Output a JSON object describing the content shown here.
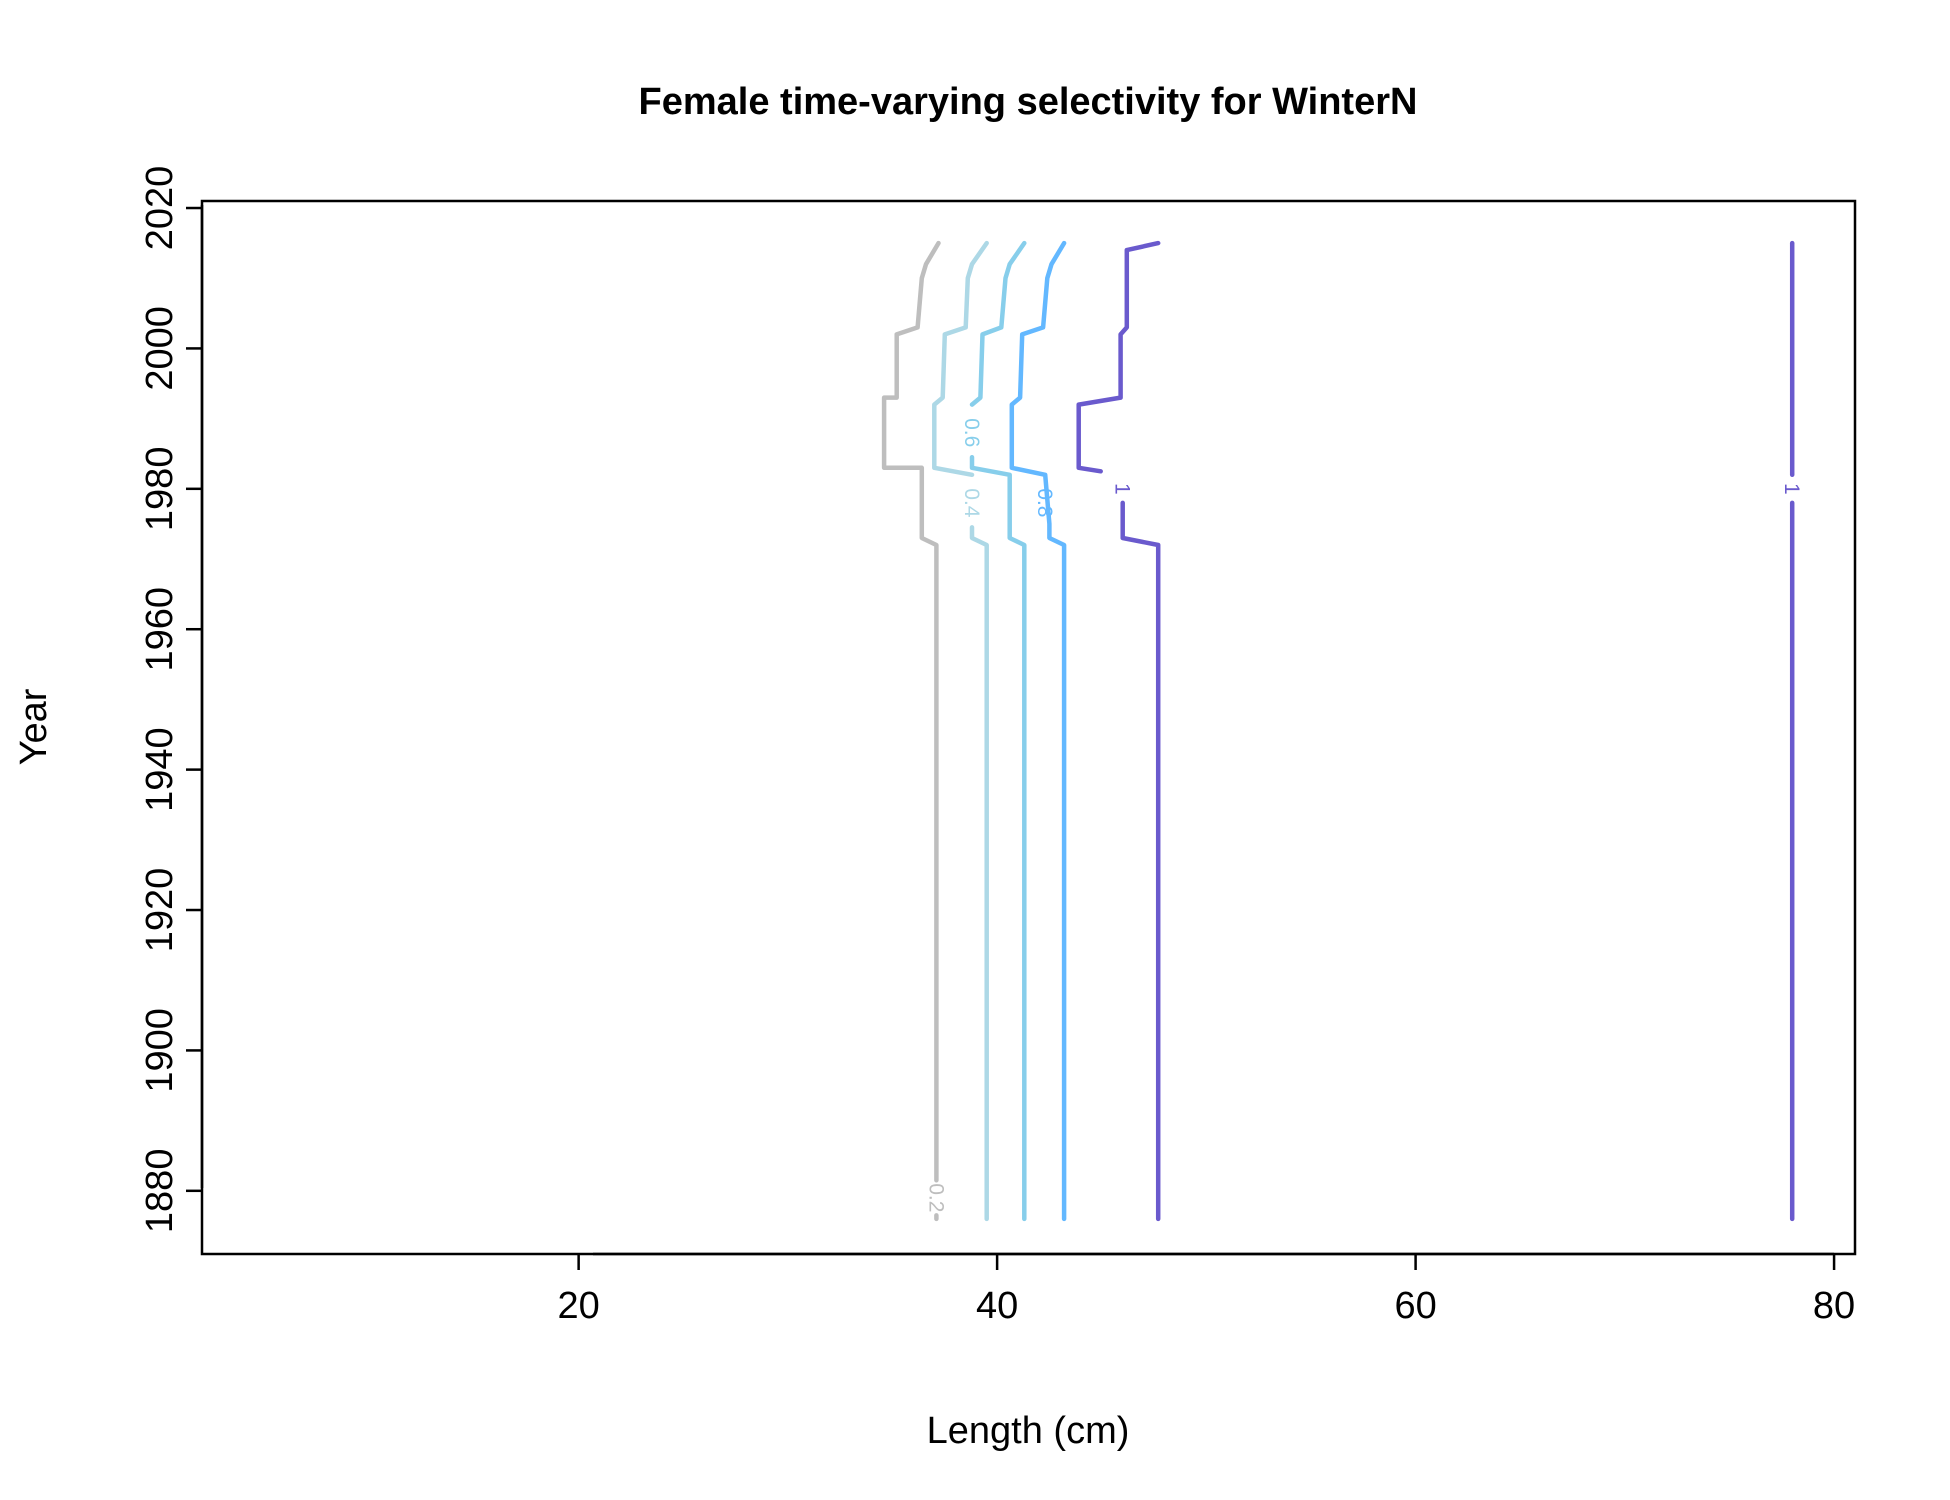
{
  "chart_data": {
    "type": "line",
    "title": "Female time-varying selectivity for WinterN",
    "xlabel": "Length (cm)",
    "ylabel": "Year",
    "xlim": [
      2,
      81
    ],
    "ylim": [
      1871,
      2021
    ],
    "x_ticks": [
      20,
      40,
      60,
      80
    ],
    "x_tick_labels": [
      "20",
      "40",
      "60",
      "80"
    ],
    "y_ticks": [
      1880,
      1900,
      1920,
      1940,
      1960,
      1980,
      2000,
      2020
    ],
    "y_tick_labels": [
      "1880",
      "1900",
      "1920",
      "1940",
      "1960",
      "1980",
      "2000",
      "2020"
    ],
    "grid": false,
    "legend": "none",
    "series": [
      {
        "name": "0.2",
        "color": "#BEBEBE",
        "label": {
          "text": "0.2",
          "at": [
            37.1,
            1879
          ]
        },
        "points": [
          [
            37.1,
            1876
          ],
          [
            37.1,
            1972
          ],
          [
            36.4,
            1973
          ],
          [
            36.4,
            1983
          ],
          [
            34.6,
            1983
          ],
          [
            34.6,
            1993
          ],
          [
            35.2,
            1993
          ],
          [
            35.2,
            2002
          ],
          [
            36.2,
            2003
          ],
          [
            36.4,
            2010
          ],
          [
            36.6,
            2012
          ],
          [
            37.2,
            2015
          ]
        ],
        "gaps": [
          [
            1876.5,
            1881.5
          ]
        ]
      },
      {
        "name": "0.4",
        "color": "#ADD8E6",
        "label": {
          "text": "0.4",
          "at": [
            38.8,
            1978
          ]
        },
        "points": [
          [
            39.5,
            1876
          ],
          [
            39.5,
            1972
          ],
          [
            38.8,
            1973
          ],
          [
            38.8,
            1982
          ],
          [
            37.0,
            1983
          ],
          [
            37.0,
            1992
          ],
          [
            37.4,
            1993
          ],
          [
            37.5,
            2002
          ],
          [
            38.5,
            2003
          ],
          [
            38.6,
            2010
          ],
          [
            38.8,
            2012
          ],
          [
            39.5,
            2015
          ]
        ],
        "gaps": [
          [
            1974.5,
            1982.0
          ]
        ]
      },
      {
        "name": "0.6",
        "color": "#87CEEB",
        "label": {
          "text": "0.6",
          "at": [
            38.8,
            1988
          ]
        },
        "points": [
          [
            41.3,
            1876
          ],
          [
            41.3,
            1972
          ],
          [
            40.6,
            1973
          ],
          [
            40.6,
            1982
          ],
          [
            38.8,
            1983
          ],
          [
            38.8,
            1992
          ],
          [
            39.2,
            1993
          ],
          [
            39.3,
            2002
          ],
          [
            40.2,
            2003
          ],
          [
            40.4,
            2010
          ],
          [
            40.6,
            2012
          ],
          [
            41.3,
            2015
          ]
        ],
        "gaps": [
          [
            1984.5,
            1992.0
          ]
        ]
      },
      {
        "name": "0.8",
        "color": "#63B8FF",
        "label": {
          "text": "0.8",
          "at": [
            42.3,
            1978
          ]
        },
        "points": [
          [
            43.2,
            1876
          ],
          [
            43.2,
            1972
          ],
          [
            42.5,
            1973
          ],
          [
            42.5,
            1975
          ],
          [
            42.3,
            1982
          ],
          [
            40.7,
            1983
          ],
          [
            40.7,
            1992
          ],
          [
            41.1,
            1993
          ],
          [
            41.2,
            2002
          ],
          [
            42.2,
            2003
          ],
          [
            42.4,
            2010
          ],
          [
            42.6,
            2012
          ],
          [
            43.2,
            2015
          ]
        ],
        "gaps": [
          [
            1975.0,
            1982.0
          ]
        ]
      },
      {
        "name": "1",
        "color": "#6A5ACD",
        "label": {
          "text": "1",
          "at": [
            46.0,
            1980
          ]
        },
        "points": [
          [
            47.7,
            1876
          ],
          [
            47.7,
            1972
          ],
          [
            46.0,
            1973
          ],
          [
            46.0,
            1982
          ],
          [
            43.9,
            1983
          ],
          [
            43.9,
            1992
          ],
          [
            45.9,
            1993
          ],
          [
            45.9,
            2002
          ],
          [
            46.2,
            2003
          ],
          [
            46.2,
            2010
          ],
          [
            46.2,
            2014
          ],
          [
            47.7,
            2015
          ]
        ],
        "gaps": [
          [
            1978.0,
            1982.5
          ]
        ]
      },
      {
        "name": "1",
        "color": "#6A5ACD",
        "label": {
          "text": "1",
          "at": [
            78.0,
            1980
          ]
        },
        "points": [
          [
            78.0,
            1876
          ],
          [
            78.0,
            2015
          ]
        ],
        "gaps": [
          [
            1978.0,
            1982.0
          ]
        ]
      }
    ]
  }
}
